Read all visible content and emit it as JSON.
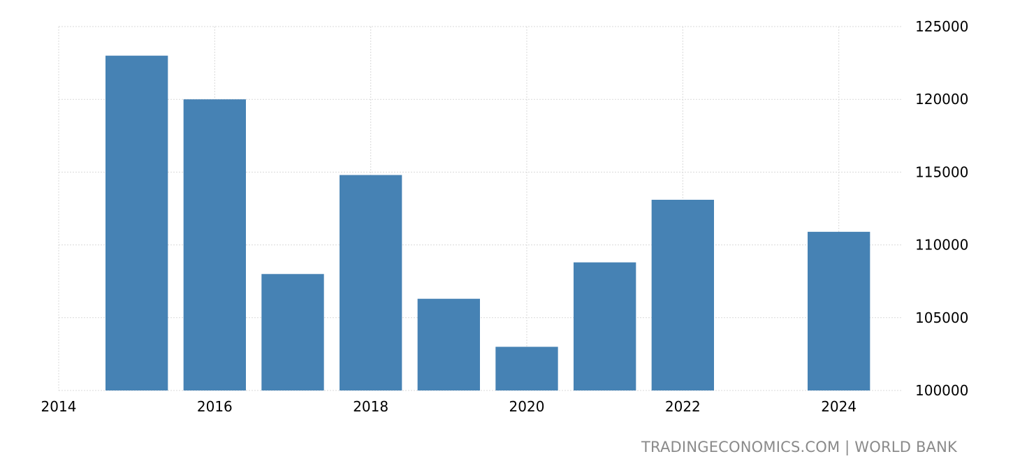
{
  "source": {
    "text": "TRADINGECONOMICS.COM | WORLD BANK"
  },
  "chart_data": {
    "type": "bar",
    "title": "",
    "xlabel": "",
    "ylabel": "",
    "x": [
      2015,
      2016,
      2017,
      2018,
      2019,
      2020,
      2021,
      2022,
      2024
    ],
    "values": [
      123000,
      120000,
      108000,
      114800,
      106300,
      103000,
      108800,
      113100,
      110900
    ],
    "xlim": [
      2014,
      2024.8
    ],
    "ylim": [
      100000,
      125000
    ],
    "x_ticks": [
      "2014",
      "2016",
      "2018",
      "2020",
      "2022",
      "2024"
    ],
    "y_ticks": [
      "100000",
      "105000",
      "110000",
      "115000",
      "120000",
      "125000"
    ],
    "y_axis_position": "right",
    "grid": true,
    "legend": "none",
    "bar_color": "#4682b4"
  }
}
